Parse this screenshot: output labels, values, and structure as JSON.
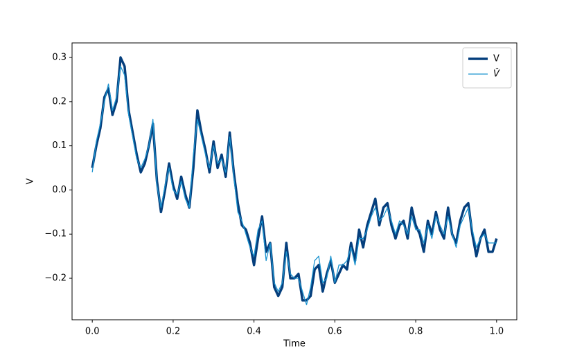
{
  "chart_data": {
    "type": "line",
    "xlabel": "Time",
    "ylabel": "V",
    "legend": "upper right",
    "x": [
      0,
      0.01,
      0.02,
      0.03,
      0.04,
      0.05,
      0.06,
      0.07,
      0.08,
      0.09,
      0.1,
      0.11,
      0.12,
      0.13,
      0.14,
      0.15,
      0.16,
      0.17,
      0.18,
      0.19,
      0.2,
      0.21,
      0.22,
      0.23,
      0.24,
      0.25,
      0.26,
      0.27,
      0.28,
      0.29,
      0.3,
      0.31,
      0.32,
      0.33,
      0.34,
      0.35,
      0.36,
      0.37,
      0.38,
      0.39,
      0.4,
      0.41,
      0.42,
      0.43,
      0.44,
      0.45,
      0.46,
      0.47,
      0.48,
      0.49,
      0.5,
      0.51,
      0.52,
      0.53,
      0.54,
      0.55,
      0.56,
      0.57,
      0.58,
      0.59,
      0.6,
      0.61,
      0.62,
      0.63,
      0.64,
      0.65,
      0.66,
      0.67,
      0.68,
      0.69,
      0.7,
      0.71,
      0.72,
      0.73,
      0.74,
      0.75,
      0.76,
      0.77,
      0.78,
      0.79,
      0.8,
      0.81,
      0.82,
      0.83,
      0.84,
      0.85,
      0.86,
      0.87,
      0.88,
      0.89,
      0.9,
      0.91,
      0.92,
      0.93,
      0.94,
      0.95,
      0.96,
      0.97,
      0.98,
      0.99,
      1
    ],
    "series": [
      {
        "name": "V",
        "color": "#053f7d",
        "width": 3.5,
        "values": [
          0.05,
          0.1,
          0.14,
          0.21,
          0.23,
          0.17,
          0.2,
          0.3,
          0.28,
          0.18,
          0.13,
          0.08,
          0.04,
          0.06,
          0.1,
          0.15,
          0.02,
          -0.05,
          0.0,
          0.06,
          0.01,
          -0.02,
          0.03,
          -0.01,
          -0.04,
          0.05,
          0.18,
          0.13,
          0.09,
          0.04,
          0.11,
          0.05,
          0.08,
          0.03,
          0.13,
          0.04,
          -0.03,
          -0.08,
          -0.09,
          -0.12,
          -0.17,
          -0.11,
          -0.06,
          -0.14,
          -0.12,
          -0.22,
          -0.24,
          -0.22,
          -0.12,
          -0.2,
          -0.2,
          -0.19,
          -0.25,
          -0.25,
          -0.24,
          -0.18,
          -0.17,
          -0.23,
          -0.19,
          -0.16,
          -0.21,
          -0.19,
          -0.17,
          -0.18,
          -0.12,
          -0.16,
          -0.09,
          -0.13,
          -0.08,
          -0.05,
          -0.02,
          -0.08,
          -0.04,
          -0.03,
          -0.08,
          -0.11,
          -0.08,
          -0.07,
          -0.11,
          -0.04,
          -0.08,
          -0.1,
          -0.14,
          -0.07,
          -0.1,
          -0.05,
          -0.09,
          -0.11,
          -0.04,
          -0.1,
          -0.12,
          -0.07,
          -0.04,
          -0.03,
          -0.1,
          -0.15,
          -0.11,
          -0.09,
          -0.14,
          -0.14,
          -0.11
        ]
      },
      {
        "name": "V̂",
        "color": "#1b93cf",
        "width": 1.3,
        "values": [
          0.04,
          0.11,
          0.15,
          0.2,
          0.24,
          0.18,
          0.21,
          0.28,
          0.26,
          0.17,
          0.12,
          0.07,
          0.05,
          0.07,
          0.1,
          0.16,
          0.01,
          -0.04,
          0.01,
          0.05,
          0.0,
          -0.01,
          0.02,
          -0.02,
          -0.04,
          0.08,
          0.16,
          0.12,
          0.08,
          0.05,
          0.1,
          0.06,
          0.07,
          0.04,
          0.12,
          0.03,
          -0.05,
          -0.07,
          -0.1,
          -0.13,
          -0.15,
          -0.09,
          -0.07,
          -0.16,
          -0.12,
          -0.21,
          -0.23,
          -0.21,
          -0.14,
          -0.19,
          -0.2,
          -0.2,
          -0.23,
          -0.26,
          -0.22,
          -0.16,
          -0.15,
          -0.21,
          -0.2,
          -0.15,
          -0.21,
          -0.17,
          -0.17,
          -0.16,
          -0.13,
          -0.17,
          -0.11,
          -0.11,
          -0.09,
          -0.06,
          -0.04,
          -0.07,
          -0.06,
          -0.04,
          -0.07,
          -0.1,
          -0.07,
          -0.08,
          -0.1,
          -0.06,
          -0.09,
          -0.09,
          -0.12,
          -0.08,
          -0.11,
          -0.06,
          -0.08,
          -0.1,
          -0.06,
          -0.1,
          -0.13,
          -0.08,
          -0.06,
          -0.04,
          -0.09,
          -0.13,
          -0.11,
          -0.1,
          -0.12,
          -0.12,
          -0.12
        ]
      }
    ],
    "xlim": [
      -0.05,
      1.05
    ],
    "xticks": [
      {
        "value": 0,
        "label": "0.0"
      },
      0.2,
      0.4,
      0.6,
      0.8,
      {
        "value": 1,
        "label": "1.0"
      }
    ],
    "ylim": [
      -0.294,
      0.333
    ],
    "yticks": [
      {
        "value": -0.2,
        "label": "−0.2"
      },
      {
        "value": -0.1,
        "label": "−0.1"
      },
      {
        "value": 0,
        "label": "0.0"
      },
      0.1,
      0.2,
      0.3
    ]
  }
}
